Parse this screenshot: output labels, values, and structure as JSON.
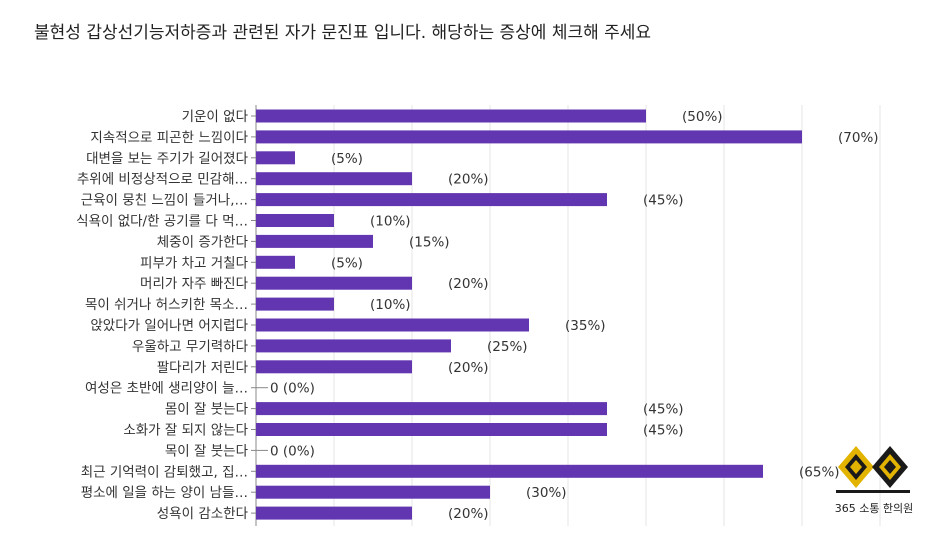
{
  "page": {
    "title": "불현성 갑상선기능저하증과 관련된 자가 문진표 입니다. 해당하는 증상에 체크해 주세요"
  },
  "logo": {
    "icon": "diamond-seal-icon",
    "text": "365 소통 한의원"
  },
  "chart_data": {
    "type": "bar",
    "orientation": "horizontal",
    "title": "",
    "xlabel": "",
    "ylabel": "",
    "xlim": [
      0,
      100
    ],
    "grid": true,
    "legend": "none",
    "bar_color": "#6236b0",
    "categories": [
      "기운이 없다",
      "지속적으로 피곤한 느낌이다",
      "대변을 보는 주기가 길어졌다",
      "추위에 비정상적으로 민감해…",
      "근육이 뭉친 느낌이 들거나,…",
      "식욕이 없다/한 공기를 다 먹…",
      "체중이 증가한다",
      "피부가 차고 거칠다",
      "머리가 자주 빠진다",
      "목이 쉬거나 허스키한 목소…",
      "앉았다가 일어나면 어지럽다",
      "우울하고 무기력하다",
      "팔다리가 저린다",
      "여성은 초반에 생리양이 늘…",
      "몸이 잘 붓는다",
      "소화가 잘 되지 않는다",
      "목이 잘 붓는다",
      "최근 기억력이 감퇴했고, 집…",
      "평소에 일을 하는 양이 남들…",
      "성욕이 감소한다"
    ],
    "values": [
      50,
      70,
      5,
      20,
      45,
      10,
      15,
      5,
      20,
      10,
      35,
      25,
      20,
      0,
      45,
      45,
      0,
      65,
      30,
      20
    ],
    "data_labels": [
      "(50%)",
      "(70%)",
      "(5%)",
      "(20%)",
      "(45%)",
      "(10%)",
      "(15%)",
      "(5%)",
      "(20%)",
      "(10%)",
      "(35%)",
      "(25%)",
      "(20%)",
      "0 (0%)",
      "(45%)",
      "(45%)",
      "0 (0%)",
      "(65%)",
      "(30%)",
      "(20%)"
    ]
  }
}
